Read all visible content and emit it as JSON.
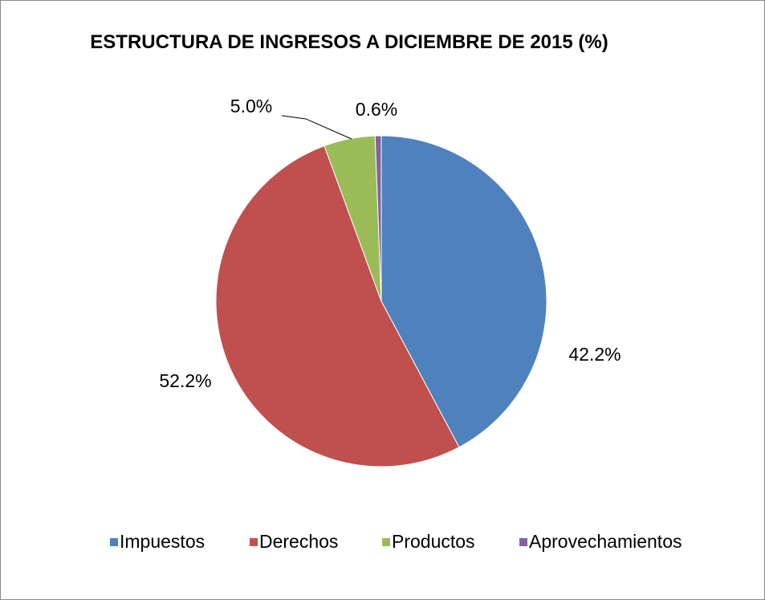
{
  "chart_data": {
    "type": "pie",
    "title": "ESTRUCTURA DE INGRESOS A DICIEMBRE DE 2015 (%)",
    "categories": [
      "Impuestos",
      "Derechos",
      "Productos",
      "Aprovechamientos"
    ],
    "values": [
      42.2,
      52.2,
      5.0,
      0.6
    ],
    "value_labels": [
      "42.2%",
      "52.2%",
      "5.0%",
      "0.6%"
    ],
    "colors": [
      "#4f81bd",
      "#c0504d",
      "#9bbb59",
      "#8064a2"
    ],
    "legend": "bottom"
  }
}
